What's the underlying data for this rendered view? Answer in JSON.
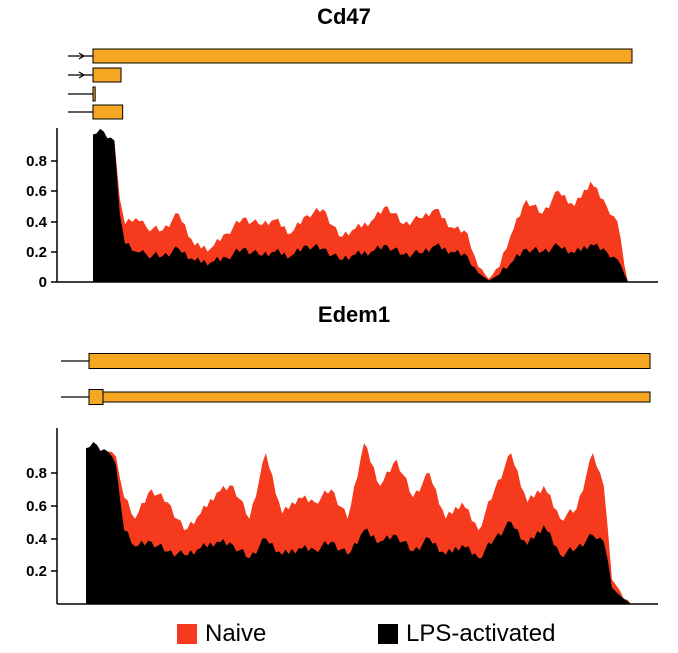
{
  "colors": {
    "naive": "#f53a1e",
    "lps": "#000000",
    "exon": "#f5a623",
    "exon_stroke": "#000000"
  },
  "legend": [
    {
      "label": "Naive",
      "color": "#f53a1e"
    },
    {
      "label": "LPS-activated",
      "color": "#000000"
    }
  ],
  "chart_data": [
    {
      "type": "area",
      "title": "Cd47",
      "xlabel": "",
      "ylabel": "",
      "ylim": [
        0,
        1.0
      ],
      "yticks": [
        "0",
        "0.2",
        "0.4",
        "0.6",
        "0.8"
      ],
      "x": [
        0,
        0.02,
        0.04,
        0.05,
        0.06,
        0.08,
        0.1,
        0.13,
        0.16,
        0.19,
        0.22,
        0.25,
        0.28,
        0.31,
        0.34,
        0.37,
        0.4,
        0.43,
        0.46,
        0.49,
        0.52,
        0.55,
        0.58,
        0.61,
        0.64,
        0.67,
        0.7,
        0.72,
        0.74,
        0.76,
        0.78,
        0.81,
        0.84,
        0.87,
        0.9,
        0.93,
        0.96,
        0.98,
        1.0
      ],
      "series": [
        {
          "name": "Naive",
          "values": [
            0.97,
            0.99,
            0.93,
            0.55,
            0.38,
            0.42,
            0.36,
            0.34,
            0.45,
            0.24,
            0.22,
            0.32,
            0.42,
            0.38,
            0.41,
            0.32,
            0.44,
            0.48,
            0.3,
            0.35,
            0.4,
            0.5,
            0.38,
            0.42,
            0.48,
            0.36,
            0.32,
            0.1,
            0.02,
            0.1,
            0.3,
            0.54,
            0.45,
            0.6,
            0.5,
            0.66,
            0.5,
            0.4,
            0.0
          ]
        },
        {
          "name": "LPS-activated",
          "values": [
            0.97,
            0.99,
            0.93,
            0.45,
            0.25,
            0.2,
            0.18,
            0.17,
            0.22,
            0.14,
            0.13,
            0.16,
            0.22,
            0.18,
            0.2,
            0.17,
            0.24,
            0.22,
            0.15,
            0.18,
            0.2,
            0.24,
            0.18,
            0.19,
            0.24,
            0.2,
            0.17,
            0.06,
            0.01,
            0.05,
            0.12,
            0.22,
            0.2,
            0.24,
            0.19,
            0.25,
            0.2,
            0.15,
            0.0
          ]
        }
      ],
      "gene_track": [
        {
          "arrow": true,
          "exons": [
            {
              "start": 0.0,
              "end": 1.0
            }
          ]
        },
        {
          "arrow": true,
          "exons": [
            {
              "start": 0.0,
              "end": 0.052
            }
          ]
        },
        {
          "arrow": false,
          "exons": [
            {
              "start": 0.0,
              "end": 0.004
            }
          ]
        },
        {
          "arrow": false,
          "exons": [
            {
              "start": 0.0,
              "end": 0.055
            }
          ]
        }
      ]
    },
    {
      "type": "area",
      "title": "Edem1",
      "xlabel": "",
      "ylabel": "",
      "ylim": [
        0,
        1.0
      ],
      "yticks": [
        "0.2",
        "0.4",
        "0.6",
        "0.8"
      ],
      "x": [
        0,
        0.02,
        0.04,
        0.055,
        0.07,
        0.09,
        0.12,
        0.15,
        0.18,
        0.21,
        0.24,
        0.27,
        0.3,
        0.33,
        0.36,
        0.39,
        0.42,
        0.45,
        0.48,
        0.51,
        0.54,
        0.57,
        0.6,
        0.63,
        0.66,
        0.69,
        0.72,
        0.75,
        0.78,
        0.81,
        0.84,
        0.87,
        0.9,
        0.93,
        0.95,
        0.965,
        0.98,
        1.0
      ],
      "series": [
        {
          "name": "Naive",
          "values": [
            0.95,
            0.97,
            0.93,
            0.9,
            0.65,
            0.52,
            0.7,
            0.62,
            0.45,
            0.55,
            0.68,
            0.72,
            0.52,
            0.92,
            0.55,
            0.65,
            0.62,
            0.7,
            0.52,
            0.98,
            0.72,
            0.88,
            0.65,
            0.8,
            0.52,
            0.62,
            0.45,
            0.7,
            0.92,
            0.62,
            0.72,
            0.52,
            0.58,
            0.92,
            0.72,
            0.15,
            0.08,
            0.0
          ]
        },
        {
          "name": "LPS-activated",
          "values": [
            0.95,
            0.97,
            0.93,
            0.85,
            0.45,
            0.35,
            0.38,
            0.32,
            0.3,
            0.34,
            0.38,
            0.36,
            0.28,
            0.4,
            0.3,
            0.34,
            0.33,
            0.38,
            0.3,
            0.45,
            0.38,
            0.42,
            0.32,
            0.4,
            0.3,
            0.36,
            0.28,
            0.4,
            0.5,
            0.36,
            0.48,
            0.3,
            0.34,
            0.42,
            0.38,
            0.1,
            0.05,
            0.0
          ]
        }
      ],
      "gene_track": [
        {
          "arrow": false,
          "exons": [
            {
              "start": 0.0,
              "end": 1.0
            }
          ]
        },
        {
          "arrow": false,
          "exons": [
            {
              "start": 0.0,
              "end": 0.025
            },
            {
              "start": 0.025,
              "end": 1.0,
              "thin": true
            }
          ]
        }
      ]
    }
  ]
}
